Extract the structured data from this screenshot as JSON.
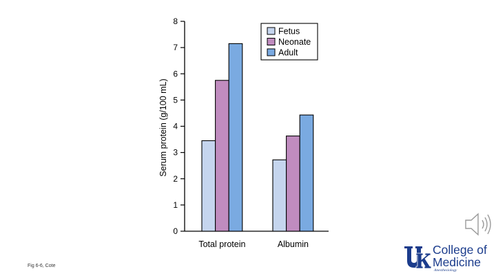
{
  "chart_data": {
    "type": "bar",
    "categories": [
      "Total protein",
      "Albumin"
    ],
    "series": [
      {
        "name": "Fetus",
        "values": [
          3.45,
          2.72
        ],
        "color": "#c5d5ee"
      },
      {
        "name": "Neonate",
        "values": [
          5.75,
          3.63
        ],
        "color": "#c08cbf"
      },
      {
        "name": "Adult",
        "values": [
          7.15,
          4.43
        ],
        "color": "#7aaae1"
      }
    ],
    "title": "",
    "xlabel": "",
    "ylabel": "Serum protein (g/100 mL)",
    "ylim": [
      0,
      8
    ],
    "yticks": [
      0,
      1,
      2,
      3,
      4,
      5,
      6,
      7,
      8
    ],
    "legend_position": "top-right",
    "grid": false
  },
  "caption": "Fig 6-6, Cote",
  "logo": {
    "line1": "College of",
    "line2": "Medicine",
    "sub": "Anesthesiology"
  },
  "icons": {
    "speaker": "speaker-icon",
    "logo_mark": "uk-logo-icon"
  },
  "colors": {
    "logo_blue": "#1b3c8c"
  }
}
